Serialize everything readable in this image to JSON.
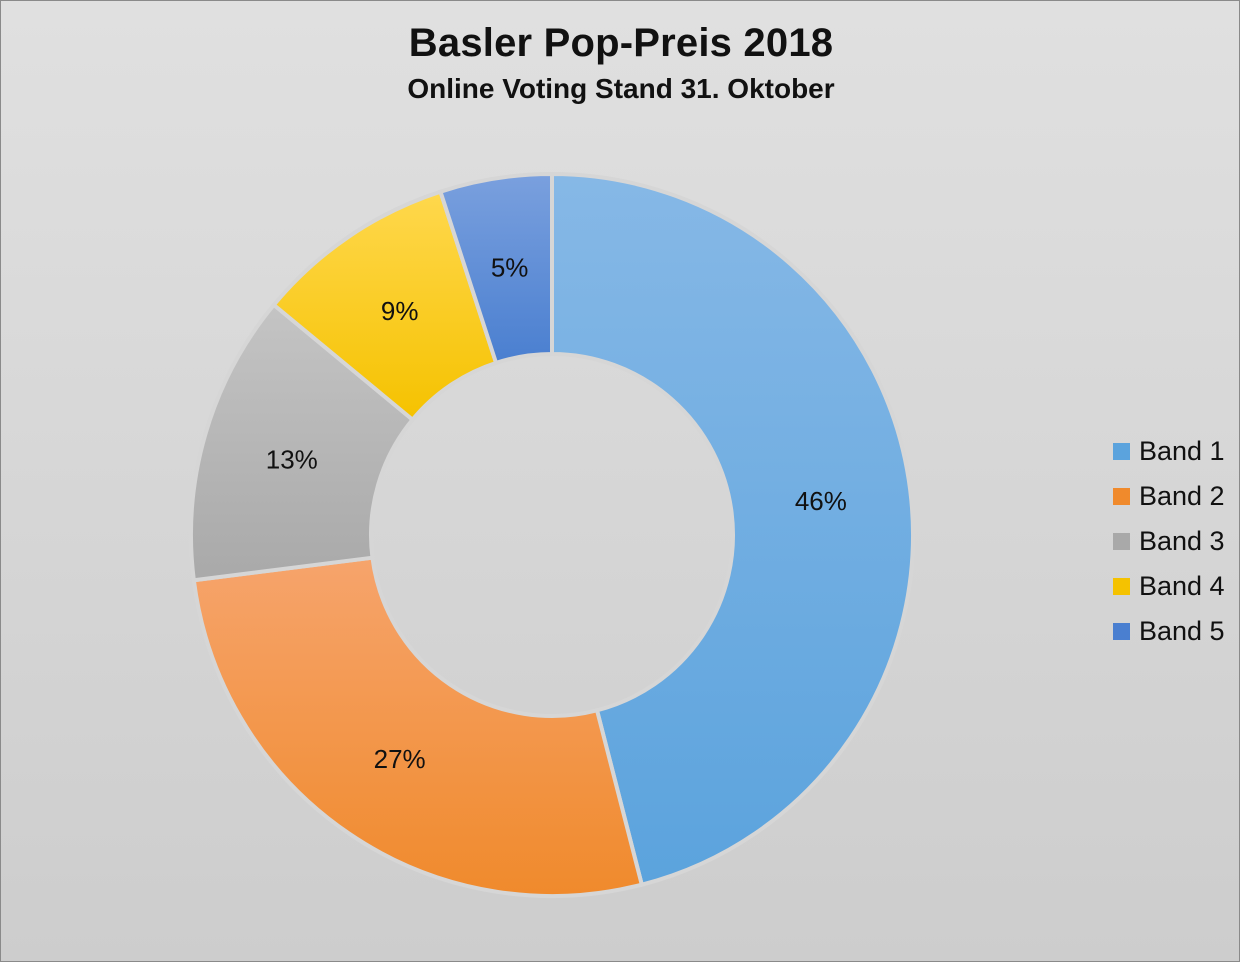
{
  "chart_data": {
    "type": "pie",
    "variant": "donut",
    "title": "Basler Pop-Preis 2018",
    "subtitle": "Online Voting Stand 31. Oktober",
    "categories": [
      "Band 1",
      "Band 2",
      "Band 3",
      "Band 4",
      "Band 5"
    ],
    "values": [
      46,
      27,
      13,
      9,
      5
    ],
    "data_labels": [
      "46%",
      "27%",
      "13%",
      "9%",
      "5%"
    ],
    "unit": "%",
    "colors": [
      "#5ba3dd",
      "#f08a2c",
      "#a9a9a9",
      "#f5c200",
      "#4a7fd0"
    ],
    "colors_light": [
      "#86b8e6",
      "#f6a46c",
      "#c4c4c4",
      "#ffd84d",
      "#7aa0de"
    ],
    "legend_position": "right",
    "start_angle": "top",
    "direction": "clockwise"
  }
}
